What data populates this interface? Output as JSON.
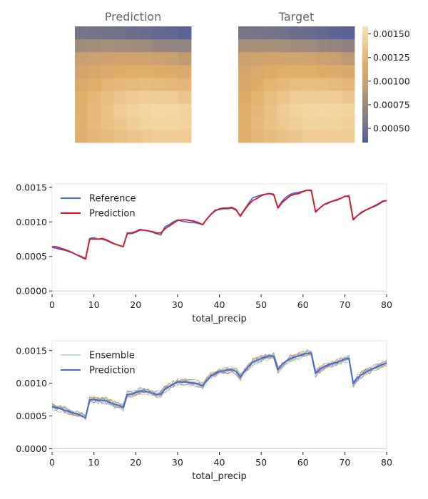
{
  "chart_data": [
    {
      "type": "heatmap",
      "title": "Prediction",
      "grid_rows": 9,
      "grid_cols": 9,
      "cells": [
        [
          0.00053,
          0.00052,
          0.00051,
          0.0005,
          0.00049,
          0.00047,
          0.00045,
          0.00043,
          0.00041
        ],
        [
          0.00078,
          0.00079,
          0.0008,
          0.00079,
          0.00078,
          0.00076,
          0.00073,
          0.0007,
          0.00068
        ],
        [
          0.00096,
          0.00098,
          0.001,
          0.00101,
          0.00102,
          0.00101,
          0.00099,
          0.00096,
          0.00092
        ],
        [
          0.00105,
          0.0011,
          0.00114,
          0.00116,
          0.00117,
          0.00117,
          0.00116,
          0.00114,
          0.00112
        ],
        [
          0.00112,
          0.00118,
          0.00123,
          0.00126,
          0.00128,
          0.00129,
          0.00128,
          0.00126,
          0.00124
        ],
        [
          0.00118,
          0.00125,
          0.00131,
          0.00136,
          0.00139,
          0.00141,
          0.00142,
          0.0014,
          0.00137
        ],
        [
          0.0012,
          0.00127,
          0.00134,
          0.0014,
          0.00145,
          0.00148,
          0.0015,
          0.00149,
          0.00146
        ],
        [
          0.00121,
          0.00127,
          0.00133,
          0.00138,
          0.00142,
          0.00146,
          0.00148,
          0.00148,
          0.00146
        ],
        [
          0.00119,
          0.00124,
          0.00128,
          0.00132,
          0.00136,
          0.00139,
          0.00141,
          0.00142,
          0.00141
        ]
      ]
    },
    {
      "type": "heatmap",
      "title": "Target",
      "grid_rows": 9,
      "grid_cols": 9,
      "cells": [
        [
          0.00054,
          0.00053,
          0.00052,
          0.00051,
          0.00049,
          0.00047,
          0.00045,
          0.00042,
          0.0004
        ],
        [
          0.0008,
          0.0008,
          0.00081,
          0.0008,
          0.00078,
          0.00076,
          0.00073,
          0.0007,
          0.00067
        ],
        [
          0.00099,
          0.00101,
          0.00102,
          0.00103,
          0.00103,
          0.00102,
          0.00099,
          0.00096,
          0.00091
        ],
        [
          0.00108,
          0.00112,
          0.00116,
          0.00118,
          0.00119,
          0.00118,
          0.00116,
          0.00114,
          0.00111
        ],
        [
          0.00109,
          0.00115,
          0.00122,
          0.00127,
          0.0013,
          0.00131,
          0.0013,
          0.00128,
          0.00125
        ],
        [
          0.00115,
          0.00122,
          0.0013,
          0.00136,
          0.0014,
          0.00142,
          0.00142,
          0.00141,
          0.00138
        ],
        [
          0.00118,
          0.00125,
          0.00133,
          0.0014,
          0.00145,
          0.00148,
          0.00149,
          0.00148,
          0.00146
        ],
        [
          0.0012,
          0.00127,
          0.00134,
          0.00139,
          0.00143,
          0.00146,
          0.00147,
          0.00146,
          0.00144
        ],
        [
          0.00118,
          0.00124,
          0.00129,
          0.00134,
          0.00138,
          0.0014,
          0.00141,
          0.00141,
          0.0014
        ]
      ]
    },
    {
      "type": "heatmap",
      "colorbar": {
        "ticks": [
          "0.00050",
          "0.00075",
          "0.00100",
          "0.00125",
          "0.00150"
        ],
        "range": [
          0.00035,
          0.00158
        ],
        "colormap": [
          "#4b5c99",
          "#7d7788",
          "#9d8a7a",
          "#c9a070",
          "#e0ac69",
          "#ecc78e",
          "#f7e4af"
        ]
      }
    },
    {
      "type": "line",
      "xlabel": "total_precip",
      "ylabel": "",
      "xlim": [
        0,
        80
      ],
      "ylim": [
        -5e-05,
        0.00155
      ],
      "xticks": [
        "0",
        "10",
        "20",
        "30",
        "40",
        "50",
        "60",
        "70",
        "80"
      ],
      "yticks": [
        "0.0000",
        "0.0005",
        "0.0010",
        "0.0015"
      ],
      "legend_position": "top-left",
      "x": [
        0,
        1,
        2,
        3,
        4,
        5,
        6,
        7,
        8,
        9,
        10,
        11,
        12,
        13,
        14,
        15,
        16,
        17,
        18,
        19,
        20,
        21,
        22,
        23,
        24,
        25,
        26,
        27,
        28,
        29,
        30,
        31,
        32,
        33,
        34,
        35,
        36,
        37,
        38,
        39,
        40,
        41,
        42,
        43,
        44,
        45,
        46,
        47,
        48,
        49,
        50,
        51,
        52,
        53,
        54,
        55,
        56,
        57,
        58,
        59,
        60,
        61,
        62,
        63,
        64,
        65,
        66,
        67,
        68,
        69,
        70,
        71,
        72,
        73,
        74,
        75,
        76,
        77,
        78,
        79,
        80
      ],
      "series": [
        {
          "name": "Reference",
          "color": "#4169e1",
          "values": [
            0.00063,
            0.00062,
            0.0006,
            0.00059,
            0.00057,
            0.00055,
            0.00052,
            0.0005,
            0.00047,
            0.00076,
            0.00077,
            0.00075,
            0.00075,
            0.00073,
            0.0007,
            0.00068,
            0.00066,
            0.00064,
            0.00083,
            0.00083,
            0.00085,
            0.00088,
            0.00088,
            0.00087,
            0.00085,
            0.00083,
            0.00081,
            0.00093,
            0.00096,
            0.001,
            0.00103,
            0.00101,
            0.001,
            0.00099,
            0.00099,
            0.00098,
            0.00096,
            0.00104,
            0.00111,
            0.00117,
            0.00118,
            0.00119,
            0.00119,
            0.0012,
            0.00117,
            0.00109,
            0.00118,
            0.00127,
            0.00135,
            0.00137,
            0.00139,
            0.0014,
            0.00141,
            0.00139,
            0.00121,
            0.0013,
            0.00136,
            0.0014,
            0.00142,
            0.00143,
            0.00144,
            0.00146,
            0.00146,
            0.00114,
            0.0012,
            0.00125,
            0.00128,
            0.0013,
            0.00131,
            0.00134,
            0.00137,
            0.00138,
            0.00104,
            0.00109,
            0.00113,
            0.00117,
            0.0012,
            0.00122,
            0.00125,
            0.00129,
            0.00131
          ]
        },
        {
          "name": "Prediction",
          "color": "#e2101c",
          "values": [
            0.00064,
            0.00064,
            0.00062,
            0.0006,
            0.00058,
            0.00055,
            0.00052,
            0.00049,
            0.00046,
            0.00075,
            0.00075,
            0.00075,
            0.00076,
            0.00074,
            0.00071,
            0.00068,
            0.00066,
            0.00064,
            0.00084,
            0.00084,
            0.00086,
            0.00089,
            0.00088,
            0.00087,
            0.00086,
            0.00084,
            0.00084,
            0.0009,
            0.00094,
            0.00098,
            0.00102,
            0.00103,
            0.00103,
            0.00102,
            0.00101,
            0.00099,
            0.00096,
            0.00104,
            0.00111,
            0.00116,
            0.00119,
            0.0012,
            0.0012,
            0.00121,
            0.00118,
            0.00108,
            0.00117,
            0.00125,
            0.00131,
            0.00134,
            0.00138,
            0.0014,
            0.00141,
            0.0014,
            0.0012,
            0.00128,
            0.00133,
            0.00138,
            0.0014,
            0.00141,
            0.00144,
            0.00146,
            0.00145,
            0.00115,
            0.0012,
            0.00125,
            0.00127,
            0.0013,
            0.00132,
            0.00134,
            0.00137,
            0.00137,
            0.00103,
            0.00109,
            0.00114,
            0.00117,
            0.0012,
            0.00123,
            0.00126,
            0.0013,
            0.00131
          ]
        }
      ]
    },
    {
      "type": "line",
      "xlabel": "total_precip",
      "ylabel": "",
      "xlim": [
        0,
        80
      ],
      "ylim": [
        -5e-05,
        0.00165
      ],
      "xticks": [
        "0",
        "10",
        "20",
        "30",
        "40",
        "50",
        "60",
        "70",
        "80"
      ],
      "yticks": [
        "0.0000",
        "0.0005",
        "0.0010",
        "0.0015"
      ],
      "legend_position": "top-left",
      "ensemble_members": 12,
      "ensemble_colors": [
        "#4c72b0",
        "#dd8452",
        "#55a868",
        "#c44e52",
        "#8172b3",
        "#937860",
        "#da8bc3",
        "#8c8c8c",
        "#ccb974",
        "#64b5cd",
        "#f0a030",
        "#9acd32"
      ],
      "x": [
        0,
        1,
        2,
        3,
        4,
        5,
        6,
        7,
        8,
        9,
        10,
        11,
        12,
        13,
        14,
        15,
        16,
        17,
        18,
        19,
        20,
        21,
        22,
        23,
        24,
        25,
        26,
        27,
        28,
        29,
        30,
        31,
        32,
        33,
        34,
        35,
        36,
        37,
        38,
        39,
        40,
        41,
        42,
        43,
        44,
        45,
        46,
        47,
        48,
        49,
        50,
        51,
        52,
        53,
        54,
        55,
        56,
        57,
        58,
        59,
        60,
        61,
        62,
        63,
        64,
        65,
        66,
        67,
        68,
        69,
        70,
        71,
        72,
        73,
        74,
        75,
        76,
        77,
        78,
        79,
        80
      ],
      "series": [
        {
          "name": "Ensemble",
          "color": "#55a868",
          "spread": 6e-05
        },
        {
          "name": "Prediction",
          "color": "#4169e1",
          "values": [
            0.00064,
            0.00063,
            0.00061,
            0.00059,
            0.00057,
            0.00055,
            0.00053,
            0.0005,
            0.00047,
            0.00075,
            0.00075,
            0.00074,
            0.00074,
            0.00073,
            0.0007,
            0.00068,
            0.00066,
            0.00063,
            0.00083,
            0.00083,
            0.00086,
            0.00088,
            0.00088,
            0.00087,
            0.00085,
            0.00083,
            0.00083,
            0.00091,
            0.00095,
            0.00099,
            0.00102,
            0.00102,
            0.00102,
            0.00101,
            0.001,
            0.00099,
            0.00096,
            0.00104,
            0.00111,
            0.00115,
            0.00118,
            0.00119,
            0.0012,
            0.00121,
            0.00118,
            0.00109,
            0.00118,
            0.00126,
            0.00132,
            0.00135,
            0.00138,
            0.0014,
            0.00142,
            0.00141,
            0.00121,
            0.00129,
            0.00134,
            0.00138,
            0.0014,
            0.00142,
            0.00144,
            0.00146,
            0.00146,
            0.00115,
            0.00121,
            0.00125,
            0.00128,
            0.0013,
            0.00132,
            0.00134,
            0.00137,
            0.00138,
            0.001,
            0.00108,
            0.00113,
            0.00117,
            0.0012,
            0.00123,
            0.00126,
            0.00129,
            0.00131
          ]
        }
      ]
    }
  ]
}
